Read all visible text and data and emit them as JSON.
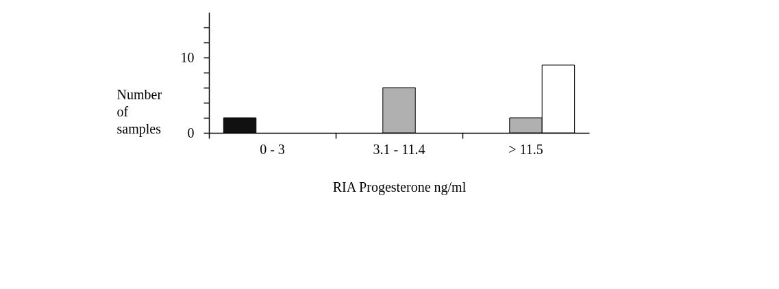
{
  "chart_data": {
    "type": "bar",
    "xlabel": "RIA Progesterone ng/ml",
    "ylabel": "Number of samples",
    "categories": [
      "0 - 3",
      "3.1 - 11.4",
      "> 11.5"
    ],
    "series": [
      {
        "color": "#111111",
        "values": [
          2,
          null,
          null
        ]
      },
      {
        "color": "#b0b0b0",
        "values": [
          null,
          6,
          2
        ]
      },
      {
        "color": "#ffffff",
        "values": [
          null,
          null,
          9
        ]
      }
    ],
    "ylim": [
      0,
      16
    ],
    "yticks": [
      0,
      {
        "value": 2,
        "label": null
      },
      {
        "value": 4,
        "label": null
      },
      {
        "value": 6,
        "label": null
      },
      {
        "value": 8,
        "label": null
      },
      10,
      {
        "value": 12,
        "label": null
      },
      {
        "value": 14,
        "label": null
      }
    ],
    "grid": false,
    "legend": false
  }
}
